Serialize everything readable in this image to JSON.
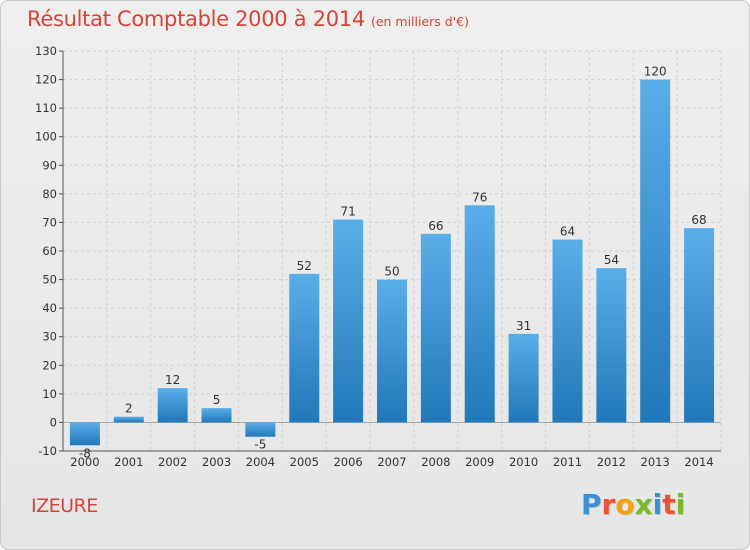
{
  "title": "Résultat Comptable 2000 à 2014",
  "subtitle": "(en milliers d'€)",
  "city": "IZEURE",
  "logo": {
    "letters": [
      "P",
      "r",
      "o",
      "x",
      "i",
      "t",
      "i"
    ],
    "colors": [
      "#3a8fd6",
      "#e8542f",
      "#f2a30f",
      "#7ab829",
      "#3a8fd6",
      "#e8542f",
      "#7ab829"
    ]
  },
  "colors": {
    "title": "#d2463a",
    "bar_light": "#5aaee8",
    "bar_dark": "#2178b8"
  },
  "chart_data": {
    "type": "bar",
    "title": "Résultat Comptable 2000 à 2014",
    "subtitle": "(en milliers d'€)",
    "xlabel": "",
    "ylabel": "",
    "categories": [
      "2000",
      "2001",
      "2002",
      "2003",
      "2004",
      "2005",
      "2006",
      "2007",
      "2008",
      "2009",
      "2010",
      "2011",
      "2012",
      "2013",
      "2014"
    ],
    "values": [
      -8,
      2,
      12,
      5,
      -5,
      52,
      71,
      50,
      66,
      76,
      31,
      64,
      54,
      120,
      68
    ],
    "ylim": [
      -10,
      130
    ],
    "yticks": [
      -10,
      0,
      10,
      20,
      30,
      40,
      50,
      60,
      70,
      80,
      90,
      100,
      110,
      120,
      130
    ],
    "grid": true
  }
}
